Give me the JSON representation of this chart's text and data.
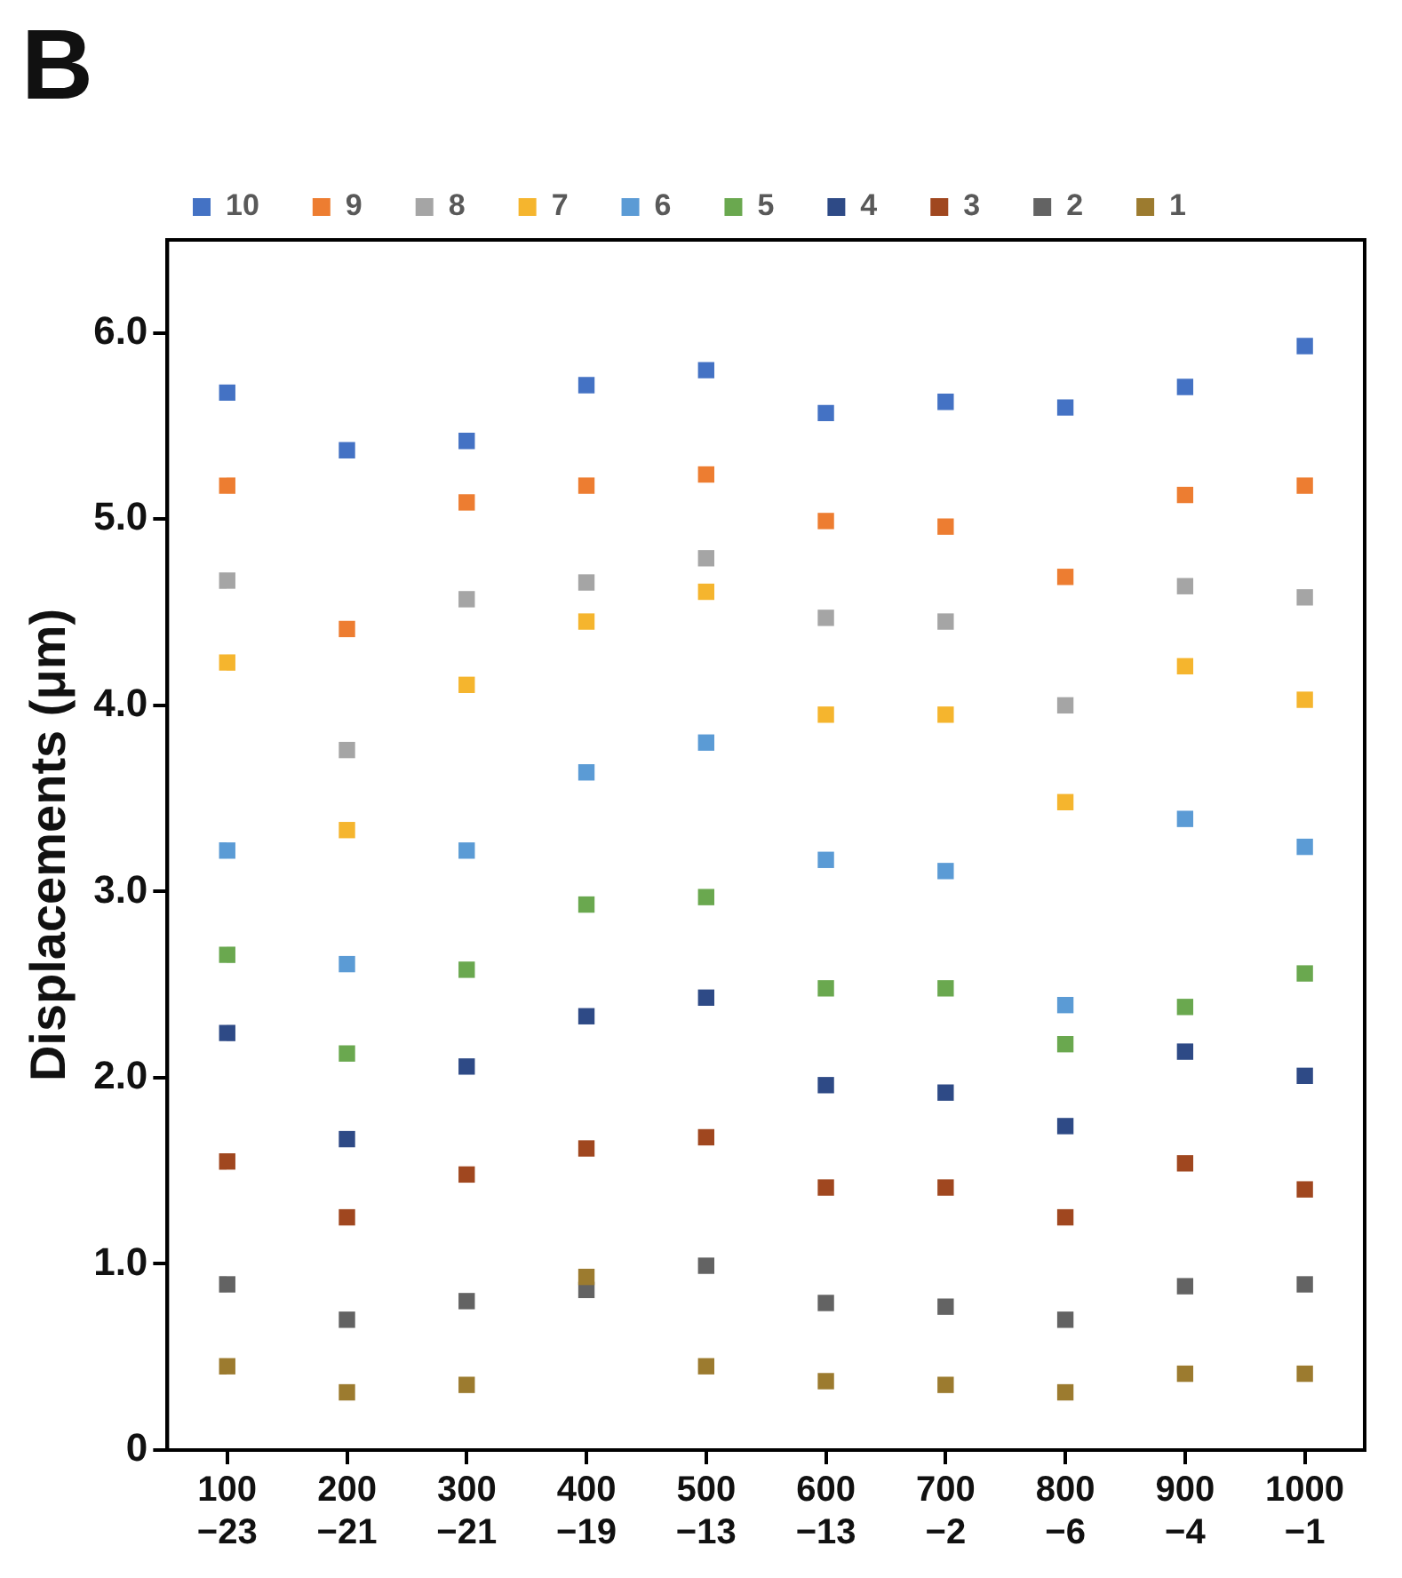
{
  "chart_data": {
    "type": "scatter",
    "ylabel": "Displacements (μm)",
    "annotations": [
      "B"
    ],
    "categories": [
      "100\n−23",
      "200\n−21",
      "300\n−21",
      "400\n−19",
      "500\n−13",
      "600\n−13",
      "700\n−2",
      "800\n−6",
      "900\n−4",
      "1000\n−1"
    ],
    "ylim": [
      0,
      6.5
    ],
    "yticks": [
      {
        "value": 0,
        "label": "0"
      },
      {
        "value": 1,
        "label": "1.0"
      },
      {
        "value": 2,
        "label": "2.0"
      },
      {
        "value": 3,
        "label": "3.0"
      },
      {
        "value": 4,
        "label": "4.0"
      },
      {
        "value": 5,
        "label": "5.0"
      },
      {
        "value": 6,
        "label": "6.0"
      }
    ],
    "grid": false,
    "legend": "top",
    "marker": "square",
    "series": [
      {
        "name": "1",
        "color": "#9c7b2f",
        "values": [
          0.45,
          0.31,
          0.35,
          0.93,
          0.45,
          0.37,
          0.35,
          0.31,
          0.41,
          0.41
        ]
      },
      {
        "name": "2",
        "color": "#636363",
        "values": [
          0.89,
          0.7,
          0.8,
          0.86,
          0.99,
          0.79,
          0.77,
          0.7,
          0.88,
          0.89
        ]
      },
      {
        "name": "3",
        "color": "#a0471f",
        "values": [
          1.55,
          1.25,
          1.48,
          1.62,
          1.68,
          1.41,
          1.41,
          1.25,
          1.54,
          1.4
        ]
      },
      {
        "name": "4",
        "color": "#2e4a86",
        "values": [
          2.24,
          1.67,
          2.06,
          2.33,
          2.43,
          1.96,
          1.92,
          1.74,
          2.14,
          2.01
        ]
      },
      {
        "name": "5",
        "color": "#6aa84f",
        "values": [
          2.66,
          2.13,
          2.58,
          2.93,
          2.97,
          2.48,
          2.48,
          2.18,
          2.38,
          2.56
        ]
      },
      {
        "name": "6",
        "color": "#5b9bd5",
        "values": [
          3.22,
          2.61,
          3.22,
          3.64,
          3.8,
          3.17,
          3.11,
          2.39,
          3.39,
          3.24
        ]
      },
      {
        "name": "7",
        "color": "#f5b52e",
        "values": [
          4.23,
          3.33,
          4.11,
          4.45,
          4.61,
          3.95,
          3.95,
          3.48,
          4.21,
          4.03
        ]
      },
      {
        "name": "8",
        "color": "#a5a5a5",
        "values": [
          4.67,
          3.76,
          4.57,
          4.66,
          4.79,
          4.47,
          4.45,
          4.0,
          4.64,
          4.58
        ]
      },
      {
        "name": "9",
        "color": "#ed7d31",
        "values": [
          5.18,
          4.41,
          5.09,
          5.18,
          5.24,
          4.99,
          4.96,
          4.69,
          5.13,
          5.18
        ]
      },
      {
        "name": "10",
        "color": "#4472c4",
        "values": [
          5.68,
          5.37,
          5.42,
          5.72,
          5.8,
          5.57,
          5.63,
          5.6,
          5.71,
          5.93
        ]
      }
    ]
  }
}
